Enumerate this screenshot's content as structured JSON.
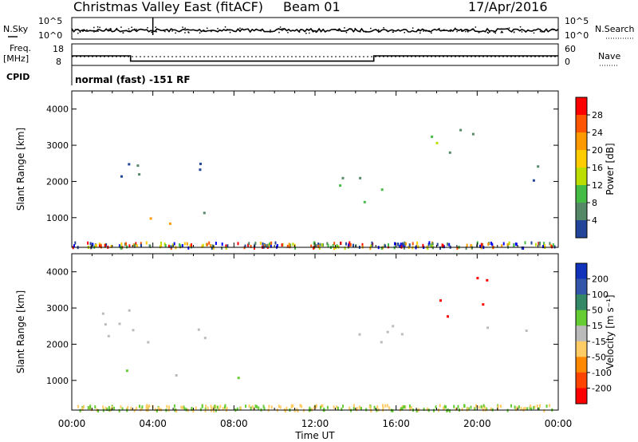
{
  "header": {
    "title": "Christmas Valley East (fitACF)",
    "beam": "Beam 01",
    "date": "17/Apr/2016"
  },
  "noise_panel": {
    "left_label": "N.Sky",
    "right_label": "N.Search",
    "left_ticks": [
      "10^5",
      "10^0"
    ],
    "right_ticks": [
      "10^5",
      "10^0"
    ]
  },
  "freq_panel": {
    "left_label_1": "Freq.",
    "left_label_2": "[MHz]",
    "right_label": "Nave",
    "left_ticks": [
      "18",
      "8"
    ],
    "right_ticks": [
      "60",
      "0"
    ]
  },
  "cpid": {
    "label": "CPID",
    "text": "normal (fast) -151 RF"
  },
  "power_panel": {
    "ylabel": "Slant Range [km]",
    "yticks": [
      "4000",
      "3000",
      "2000",
      "1000"
    ],
    "colorbar_label": "Power [dB]",
    "colorbar_ticks": [
      "28",
      "24",
      "20",
      "16",
      "12",
      "8",
      "4"
    ],
    "colorbar_colors": [
      "#ff0000",
      "#ff5500",
      "#ff9900",
      "#ffcc00",
      "#bbdd00",
      "#44bb44",
      "#558866",
      "#224499",
      "#0000ff"
    ]
  },
  "velocity_panel": {
    "ylabel": "Slant Range [km]",
    "yticks": [
      "4000",
      "3000",
      "2000",
      "1000"
    ],
    "colorbar_label": "Velocity [m s⁻¹]",
    "colorbar_ticks": [
      "200",
      "100",
      "50",
      "15",
      "-15",
      "-50",
      "-100",
      "-200"
    ],
    "colorbar_colors": [
      "#1133bb",
      "#3355aa",
      "#338866",
      "#66cc33",
      "#bbbbbb",
      "#ffcc66",
      "#ff8800",
      "#ff4400",
      "#ff0000"
    ]
  },
  "xaxis": {
    "label": "Time UT",
    "ticks": [
      "00:00",
      "04:00",
      "08:00",
      "12:00",
      "16:00",
      "20:00",
      "00:00"
    ]
  },
  "chart_data": {
    "type": "heatmap",
    "x_unit": "hours UT",
    "xlim": [
      0,
      24
    ],
    "ylim": [
      180,
      4500
    ],
    "frequency_MHz": [
      {
        "from": 0,
        "to": 2.9,
        "value": 13
      },
      {
        "from": 2.9,
        "to": 14.9,
        "value": 10
      },
      {
        "from": 14.9,
        "to": 24,
        "value": 13
      }
    ],
    "power_features": [
      {
        "t0": 2.6,
        "t1": 5.3,
        "r0": 700,
        "r1": 1500,
        "level_dB": 24
      },
      {
        "t0": 0.8,
        "t1": 4.0,
        "r0": 1900,
        "r1": 3000,
        "level_dB": 8
      },
      {
        "t0": 4.0,
        "t1": 8.0,
        "r0": 2200,
        "r1": 2700,
        "level_dB": 6
      },
      {
        "t0": 6.0,
        "t1": 9.0,
        "r0": 1100,
        "r1": 1400,
        "level_dB": 8
      },
      {
        "t0": 13.0,
        "t1": 16.5,
        "r0": 1300,
        "r1": 2600,
        "level_dB": 10
      },
      {
        "t0": 17.0,
        "t1": 20.5,
        "r0": 2700,
        "r1": 4000,
        "level_dB": 12
      },
      {
        "t0": 20.0,
        "t1": 24.0,
        "r0": 2000,
        "r1": 2500,
        "level_dB": 8
      }
    ],
    "velocity_features": [
      {
        "t0": 2.6,
        "t1": 5.3,
        "r0": 700,
        "r1": 1500,
        "velocity_ms": 60
      },
      {
        "t0": 6.0,
        "t1": 9.0,
        "r0": 1100,
        "r1": 1400,
        "velocity_ms": 50
      },
      {
        "t0": 0.8,
        "t1": 8.0,
        "r0": 1900,
        "r1": 3000,
        "velocity_ms": 0
      },
      {
        "t0": 13.0,
        "t1": 16.5,
        "r0": 1300,
        "r1": 2600,
        "velocity_ms": 0
      },
      {
        "t0": 17.0,
        "t1": 20.5,
        "r0": 2700,
        "r1": 4000,
        "velocity_ms": -200
      },
      {
        "t0": 20.0,
        "t1": 24.0,
        "r0": 2000,
        "r1": 2500,
        "velocity_ms": 0
      }
    ]
  }
}
